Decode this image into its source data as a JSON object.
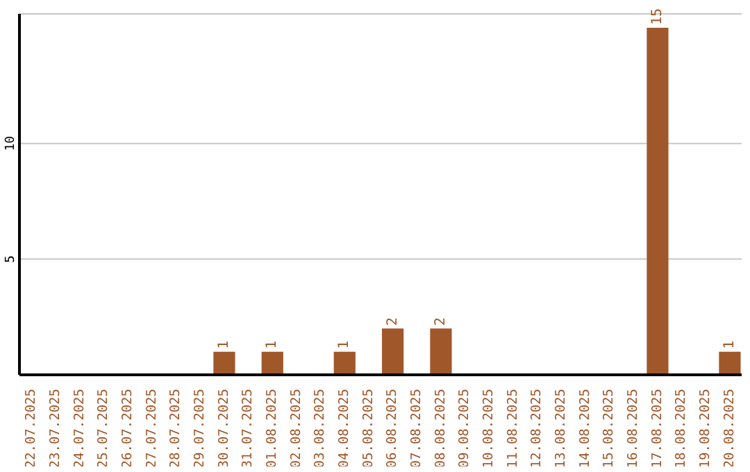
{
  "chart_data": {
    "type": "bar",
    "categories": [
      "22.07.2025",
      "23.07.2025",
      "24.07.2025",
      "25.07.2025",
      "26.07.2025",
      "27.07.2025",
      "28.07.2025",
      "29.07.2025",
      "30.07.2025",
      "31.07.2025",
      "01.08.2025",
      "02.08.2025",
      "03.08.2025",
      "04.08.2025",
      "05.08.2025",
      "06.08.2025",
      "07.08.2025",
      "08.08.2025",
      "09.08.2025",
      "10.08.2025",
      "11.08.2025",
      "12.08.2025",
      "13.08.2025",
      "14.08.2025",
      "15.08.2025",
      "16.08.2025",
      "17.08.2025",
      "18.08.2025",
      "19.08.2025",
      "20.08.2025"
    ],
    "values": [
      0,
      0,
      0,
      0,
      0,
      0,
      0,
      0,
      1,
      0,
      1,
      0,
      0,
      1,
      0,
      2,
      0,
      2,
      0,
      0,
      0,
      0,
      0,
      0,
      0,
      0,
      15,
      0,
      0,
      1
    ],
    "value_labels": [
      null,
      null,
      null,
      null,
      null,
      null,
      null,
      null,
      "1",
      null,
      "1",
      null,
      null,
      "1",
      null,
      "2",
      null,
      "2",
      null,
      null,
      null,
      null,
      null,
      null,
      null,
      null,
      "15",
      null,
      null,
      "1"
    ],
    "color": "#a0572a",
    "ylim": [
      0,
      15.6
    ],
    "yticks": [
      5,
      10
    ],
    "grid": "y"
  }
}
